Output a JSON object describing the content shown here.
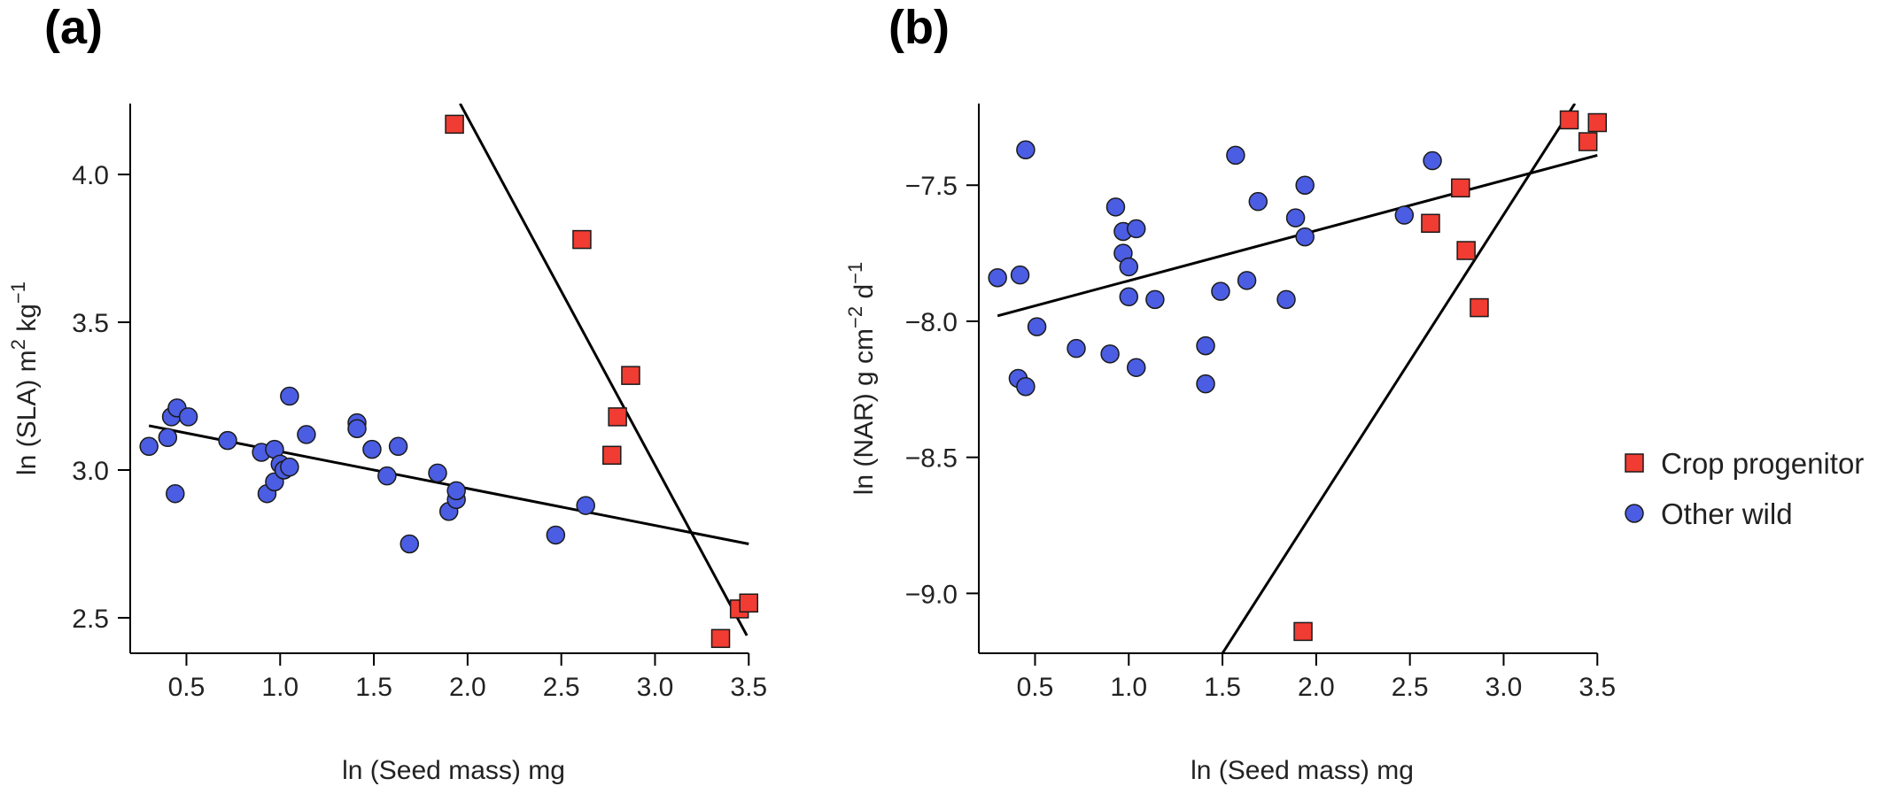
{
  "panels": [
    {
      "label": "(a)"
    },
    {
      "label": "(b)"
    }
  ],
  "legend": [
    {
      "label": "Crop progenitor",
      "marker": "square",
      "color": "#f03c32"
    },
    {
      "label": "Other wild",
      "marker": "circle",
      "color": "#4b5de2"
    }
  ],
  "colors": {
    "crop": "#f03c32",
    "wild": "#4b5de2",
    "line": "#000000"
  },
  "chart_data": [
    {
      "type": "scatter",
      "panel": "(a)",
      "xlabel": "ln (Seed mass) mg",
      "ylabel_main": "ln (SLA) m",
      "ylabel_sup1": "2",
      "ylabel_mid": " kg",
      "ylabel_sup2": "−1",
      "xlim": [
        0.2,
        3.65
      ],
      "ylim": [
        2.38,
        4.24
      ],
      "xticks": [
        0.5,
        1.0,
        1.5,
        2.0,
        2.5,
        3.0,
        3.5
      ],
      "xtick_labels": [
        "0.5",
        "1.0",
        "1.5",
        "2.0",
        "2.5",
        "3.0",
        "3.5"
      ],
      "yticks": [
        2.5,
        3.0,
        3.5,
        4.0
      ],
      "ytick_labels": [
        "2.5",
        "3.0",
        "3.5",
        "4.0"
      ],
      "series": [
        {
          "name": "Crop progenitor",
          "marker": "square",
          "x": [
            1.93,
            2.61,
            2.87,
            2.8,
            2.77,
            3.35,
            3.45,
            3.5
          ],
          "y": [
            4.17,
            3.78,
            3.32,
            3.18,
            3.05,
            2.43,
            2.53,
            2.55
          ]
        },
        {
          "name": "Other wild",
          "marker": "circle",
          "x": [
            0.3,
            0.4,
            0.42,
            0.45,
            0.44,
            0.51,
            0.72,
            0.9,
            0.93,
            0.97,
            0.97,
            1.0,
            1.02,
            1.05,
            1.05,
            1.14,
            1.41,
            1.41,
            1.49,
            1.57,
            1.63,
            1.69,
            1.84,
            1.9,
            1.94,
            1.94,
            2.47,
            2.63
          ],
          "y": [
            3.08,
            3.11,
            3.18,
            3.21,
            2.92,
            3.18,
            3.1,
            3.06,
            2.92,
            2.96,
            3.07,
            3.02,
            3.0,
            3.01,
            3.25,
            3.12,
            3.16,
            3.14,
            3.07,
            2.98,
            3.08,
            2.75,
            2.99,
            2.86,
            2.9,
            2.93,
            2.78,
            2.88
          ]
        }
      ],
      "fit_lines": [
        {
          "name": "Crop progenitor",
          "x1": 1.96,
          "y1": 4.24,
          "x2": 3.49,
          "y2": 2.44
        },
        {
          "name": "Other wild",
          "x1": 0.3,
          "y1": 3.15,
          "x2": 3.5,
          "y2": 2.75
        }
      ]
    },
    {
      "type": "scatter",
      "panel": "(b)",
      "xlabel": "ln (Seed mass) mg",
      "ylabel_main": "ln (NAR) g cm",
      "ylabel_sup1": "−2",
      "ylabel_mid": " d",
      "ylabel_sup2": "−1",
      "xlim": [
        0.2,
        3.65
      ],
      "ylim": [
        -9.22,
        -7.2
      ],
      "xticks": [
        0.5,
        1.0,
        1.5,
        2.0,
        2.5,
        3.0,
        3.5
      ],
      "xtick_labels": [
        "0.5",
        "1.0",
        "1.5",
        "2.0",
        "2.5",
        "3.0",
        "3.5"
      ],
      "yticks": [
        -9.0,
        -8.5,
        -8.0,
        -7.5
      ],
      "ytick_labels": [
        "−9.0",
        "−8.5",
        "−8.0",
        "−7.5"
      ],
      "series": [
        {
          "name": "Crop progenitor",
          "marker": "square",
          "x": [
            1.93,
            2.61,
            2.77,
            2.8,
            2.87,
            3.35,
            3.45,
            3.5
          ],
          "y": [
            -9.14,
            -7.64,
            -7.51,
            -7.74,
            -7.95,
            -7.26,
            -7.34,
            -7.27
          ]
        },
        {
          "name": "Other wild",
          "marker": "circle",
          "x": [
            0.3,
            0.42,
            0.45,
            0.41,
            0.45,
            0.51,
            0.72,
            0.9,
            0.93,
            0.97,
            0.97,
            1.0,
            1.0,
            1.04,
            1.04,
            1.14,
            1.41,
            1.41,
            1.49,
            1.57,
            1.63,
            1.69,
            1.84,
            1.89,
            1.94,
            1.94,
            2.47,
            2.62
          ],
          "y": [
            -7.84,
            -7.83,
            -7.37,
            -8.21,
            -8.24,
            -8.02,
            -8.1,
            -8.12,
            -7.58,
            -7.67,
            -7.75,
            -7.8,
            -7.91,
            -7.66,
            -8.17,
            -7.92,
            -8.09,
            -8.23,
            -7.89,
            -7.39,
            -7.85,
            -7.56,
            -7.92,
            -7.62,
            -7.5,
            -7.69,
            -7.61,
            -7.41
          ]
        }
      ],
      "fit_lines": [
        {
          "name": "Crop progenitor",
          "x1": 1.5,
          "y1": -9.22,
          "x2": 3.38,
          "y2": -7.2
        },
        {
          "name": "Other wild",
          "x1": 0.3,
          "y1": -7.98,
          "x2": 3.5,
          "y2": -7.39
        }
      ]
    }
  ]
}
